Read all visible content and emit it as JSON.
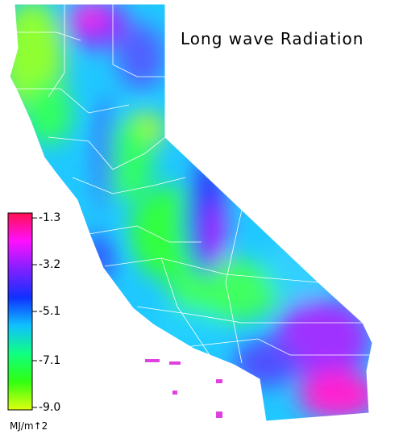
{
  "title": "Long wave Radiation",
  "colorbar": {
    "lim": [
      -1.1,
      -9.1
    ],
    "ticks": [
      -1.3,
      -3.2,
      -5.1,
      -7.1,
      {
        "value": -9,
        "label": "-9.0"
      }
    ],
    "unit": "MJ/m↑2",
    "colors": [
      "#ff1050",
      "#ff10ff",
      "#8020ff",
      "#1030ff",
      "#10c0ff",
      "#10ff80",
      "#30ff10",
      "#e0ff10"
    ]
  }
}
